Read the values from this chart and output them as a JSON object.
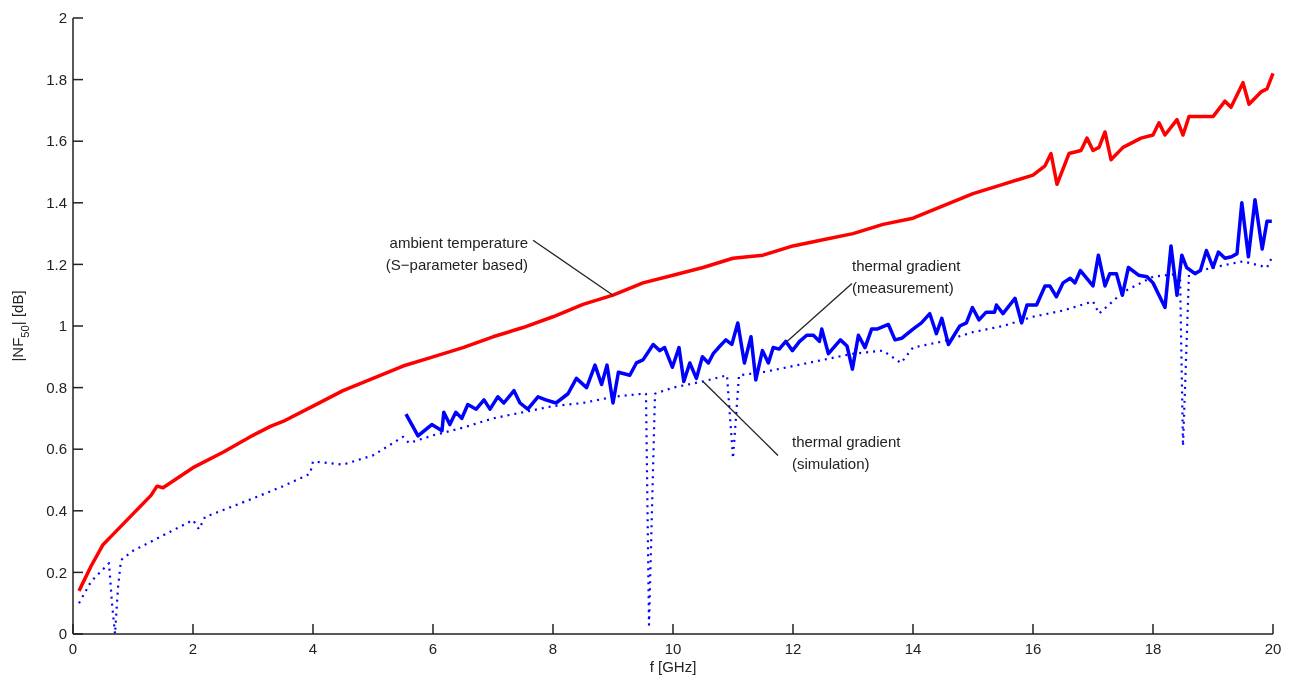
{
  "chart_data": {
    "type": "line",
    "xlabel": "f [GHz]",
    "ylabel": "|NF$_{50}$| [dB]",
    "xlim": [
      0,
      20
    ],
    "xticks": [
      0,
      2,
      4,
      6,
      8,
      10,
      12,
      14,
      16,
      18,
      20
    ],
    "ylim": [
      0,
      2
    ],
    "yticks": [
      0,
      0.2,
      0.4,
      0.6,
      0.8,
      1,
      1.2,
      1.4,
      1.6,
      1.8,
      2
    ],
    "grid": false,
    "marker": "none",
    "annotations": [
      {
        "text": "ambient temperature\n(S−parameter based)",
        "x": 9,
        "y": 1.1
      },
      {
        "text": "thermal gradient\n(measurement)",
        "x": 11.9,
        "y": 0.95
      },
      {
        "text": "thermal gradient\n(simulation)",
        "x": 10.5,
        "y": 0.82
      }
    ],
    "series": [
      {
        "color": "#ff0000",
        "line_style": "solid",
        "x": [
          0.1,
          0.3,
          0.5,
          0.7,
          1,
          1.3,
          1.4,
          1.5,
          2,
          2.5,
          3,
          3.3,
          3.5,
          4,
          4.5,
          5,
          5.5,
          6,
          6.5,
          7,
          7.5,
          8,
          8.5,
          9,
          9.5,
          10,
          10.5,
          11,
          11.5,
          12,
          12.5,
          13,
          13.5,
          14,
          14.5,
          15,
          15.5,
          16,
          16.2,
          16.3,
          16.4,
          16.6,
          16.8,
          16.9,
          17,
          17.1,
          17.2,
          17.3,
          17.5,
          17.8,
          18,
          18.1,
          18.2,
          18.4,
          18.5,
          18.6,
          19,
          19.2,
          19.3,
          19.5,
          19.6,
          19.8,
          19.9,
          20
        ],
        "values": [
          0.14,
          0.22,
          0.29,
          0.33,
          0.39,
          0.45,
          0.48,
          0.475,
          0.54,
          0.59,
          0.645,
          0.675,
          0.69,
          0.74,
          0.79,
          0.83,
          0.87,
          0.9,
          0.93,
          0.965,
          0.995,
          1.03,
          1.07,
          1.1,
          1.14,
          1.165,
          1.19,
          1.22,
          1.23,
          1.26,
          1.28,
          1.3,
          1.33,
          1.35,
          1.39,
          1.43,
          1.46,
          1.49,
          1.52,
          1.56,
          1.46,
          1.56,
          1.57,
          1.61,
          1.57,
          1.58,
          1.63,
          1.54,
          1.58,
          1.61,
          1.62,
          1.66,
          1.62,
          1.67,
          1.62,
          1.68,
          1.68,
          1.73,
          1.71,
          1.79,
          1.72,
          1.76,
          1.77,
          1.82
        ]
      },
      {
        "color": "#0000ff",
        "line_style": "solid",
        "x": [
          5.55,
          5.75,
          5.98,
          6.15,
          6.18,
          6.28,
          6.38,
          6.48,
          6.58,
          6.72,
          6.85,
          6.95,
          7.08,
          7.18,
          7.35,
          7.45,
          7.58,
          7.75,
          7.88,
          8.05,
          8.25,
          8.39,
          8.56,
          8.7,
          8.81,
          8.9,
          9,
          9.09,
          9.28,
          9.39,
          9.5,
          9.67,
          9.78,
          9.86,
          9.99,
          10.1,
          10.18,
          10.28,
          10.39,
          10.49,
          10.59,
          10.67,
          10.76,
          10.88,
          10.98,
          11.08,
          11.19,
          11.3,
          11.38,
          11.49,
          11.59,
          11.67,
          11.77,
          11.88,
          11.99,
          12.11,
          12.23,
          12.34,
          12.44,
          12.48,
          12.59,
          12.79,
          12.9,
          12.99,
          13.09,
          13.2,
          13.31,
          13.4,
          13.59,
          13.7,
          13.81,
          14,
          14.14,
          14.28,
          14.39,
          14.48,
          14.59,
          14.78,
          14.89,
          14.99,
          15.1,
          15.22,
          15.36,
          15.39,
          15.5,
          15.7,
          15.81,
          15.9,
          16.06,
          16.2,
          16.28,
          16.39,
          16.5,
          16.62,
          16.7,
          16.79,
          17,
          17.09,
          17.2,
          17.28,
          17.39,
          17.49,
          17.59,
          17.76,
          17.9,
          18,
          18.2,
          18.3,
          18.4,
          18.48,
          18.56,
          18.7,
          18.79,
          18.89,
          19,
          19.09,
          19.2,
          19.31,
          19.4,
          19.48,
          19.59,
          19.7,
          19.82,
          19.9,
          19.98
        ],
        "values": [
          0.714,
          0.643,
          0.68,
          0.66,
          0.72,
          0.68,
          0.72,
          0.7,
          0.745,
          0.73,
          0.76,
          0.73,
          0.77,
          0.75,
          0.79,
          0.75,
          0.73,
          0.77,
          0.76,
          0.75,
          0.78,
          0.83,
          0.8,
          0.873,
          0.81,
          0.873,
          0.75,
          0.85,
          0.84,
          0.88,
          0.89,
          0.94,
          0.92,
          0.93,
          0.866,
          0.93,
          0.82,
          0.88,
          0.83,
          0.9,
          0.88,
          0.91,
          0.93,
          0.955,
          0.94,
          1.01,
          0.88,
          0.965,
          0.825,
          0.92,
          0.88,
          0.93,
          0.925,
          0.95,
          0.92,
          0.95,
          0.97,
          0.97,
          0.95,
          0.99,
          0.91,
          0.955,
          0.935,
          0.86,
          0.97,
          0.93,
          0.99,
          0.99,
          1.005,
          0.955,
          0.96,
          0.99,
          1.01,
          1.04,
          0.975,
          1.025,
          0.94,
          1,
          1.01,
          1.06,
          1.02,
          1.045,
          1.045,
          1.068,
          1.04,
          1.09,
          1.01,
          1.068,
          1.068,
          1.13,
          1.13,
          1.095,
          1.14,
          1.155,
          1.14,
          1.18,
          1.13,
          1.23,
          1.13,
          1.17,
          1.17,
          1.1,
          1.19,
          1.165,
          1.16,
          1.14,
          1.06,
          1.26,
          1.1,
          1.23,
          1.19,
          1.17,
          1.18,
          1.245,
          1.19,
          1.24,
          1.22,
          1.225,
          1.235,
          1.4,
          1.225,
          1.41,
          1.25,
          1.34,
          1.34
        ]
      },
      {
        "color": "#0000ff",
        "line_style": "dotted",
        "x": [
          0.1,
          0.3,
          0.5,
          0.6,
          0.65,
          0.7,
          0.75,
          0.8,
          1,
          1.5,
          2,
          2.1,
          2.2,
          3,
          3.5,
          3.95,
          4,
          4.5,
          5,
          5.5,
          5.6,
          6,
          6.5,
          7,
          7.5,
          8,
          8.5,
          9,
          9.5,
          9.55,
          9.6,
          9.7,
          10,
          10.5,
          10.9,
          11,
          11.1,
          11.5,
          12,
          12.5,
          13,
          13.5,
          13.8,
          14,
          14.5,
          15,
          15.5,
          16,
          16.5,
          17,
          17.1,
          17.5,
          18,
          18.45,
          18.5,
          18.6,
          19,
          19.5,
          19.9,
          20
        ],
        "values": [
          0.1,
          0.17,
          0.21,
          0.23,
          0.1,
          0,
          0.15,
          0.24,
          0.27,
          0.32,
          0.37,
          0.34,
          0.38,
          0.44,
          0.48,
          0.52,
          0.56,
          0.55,
          0.58,
          0.64,
          0.62,
          0.645,
          0.67,
          0.7,
          0.72,
          0.74,
          0.75,
          0.77,
          0.78,
          0.78,
          0.03,
          0.78,
          0.8,
          0.82,
          0.84,
          0.57,
          0.84,
          0.85,
          0.87,
          0.89,
          0.91,
          0.92,
          0.88,
          0.93,
          0.95,
          0.98,
          1,
          1.03,
          1.05,
          1.08,
          1.04,
          1.11,
          1.16,
          1.17,
          0.61,
          1.17,
          1.19,
          1.21,
          1.19,
          1.23
        ]
      }
    ]
  }
}
